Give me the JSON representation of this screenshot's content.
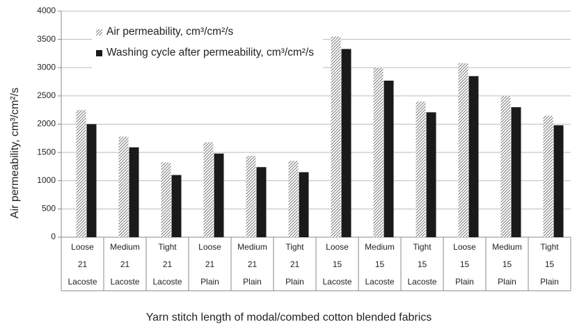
{
  "chart_data": {
    "type": "bar",
    "y_axis_label": "Air permeability, cm³/cm²/s",
    "x_axis_label": "Yarn stitch length of modal/combed cotton blended fabrics",
    "categories": [
      [
        "Loose",
        "21",
        "Lacoste"
      ],
      [
        "Medium",
        "21",
        "Lacoste"
      ],
      [
        "Tight",
        "21",
        "Lacoste"
      ],
      [
        "Loose",
        "21",
        "Plain"
      ],
      [
        "Medium",
        "21",
        "Plain"
      ],
      [
        "Tight",
        "21",
        "Plain"
      ],
      [
        "Loose",
        "15",
        "Lacoste"
      ],
      [
        "Medium",
        "15",
        "Lacoste"
      ],
      [
        "Tight",
        "15",
        "Lacoste"
      ],
      [
        "Loose",
        "15",
        "Plain"
      ],
      [
        "Medium",
        "15",
        "Plain"
      ],
      [
        "Tight",
        "15",
        "Plain"
      ]
    ],
    "series": [
      {
        "name": "Air permeability, cm³/cm²/s",
        "color": "#555555",
        "hatch": true,
        "values": [
          2250,
          1780,
          1320,
          1680,
          1440,
          1350,
          3550,
          3000,
          2400,
          3080,
          2500,
          2150
        ]
      },
      {
        "name": "Washing cycle after permeability, cm³/cm²/s",
        "color": "#1a1a1a",
        "hatch": false,
        "values": [
          2000,
          1590,
          1100,
          1480,
          1240,
          1150,
          3330,
          2770,
          2210,
          2850,
          2300,
          1980
        ]
      }
    ],
    "ylim": [
      0,
      4000
    ],
    "yticks": [
      0,
      500,
      1000,
      1500,
      2000,
      2500,
      3000,
      3500,
      4000
    ],
    "grid": true
  }
}
